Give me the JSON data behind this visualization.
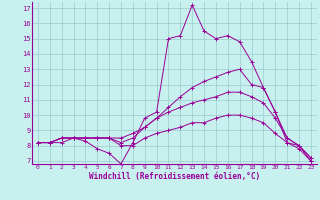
{
  "xlabel": "Windchill (Refroidissement éolien,°C)",
  "background_color": "#c8f0ee",
  "line_color": "#990099",
  "grid_color": "#99cccc",
  "xlim": [
    -0.5,
    23.5
  ],
  "ylim": [
    6.8,
    17.4
  ],
  "xticks": [
    0,
    1,
    2,
    3,
    4,
    5,
    6,
    7,
    8,
    9,
    10,
    11,
    12,
    13,
    14,
    15,
    16,
    17,
    18,
    19,
    20,
    21,
    22,
    23
  ],
  "yticks": [
    7,
    8,
    9,
    10,
    11,
    12,
    13,
    14,
    15,
    16,
    17
  ],
  "series": [
    [
      8.2,
      8.2,
      8.2,
      8.5,
      8.3,
      7.8,
      7.5,
      6.8,
      8.2,
      9.8,
      10.2,
      15.0,
      15.2,
      17.2,
      15.5,
      15.0,
      15.2,
      14.8,
      13.5,
      11.8,
      10.2,
      8.2,
      8.0,
      7.0
    ],
    [
      8.2,
      8.2,
      8.5,
      8.5,
      8.5,
      8.5,
      8.5,
      8.2,
      8.5,
      9.2,
      9.8,
      10.5,
      11.2,
      11.8,
      12.2,
      12.5,
      12.8,
      13.0,
      12.0,
      11.8,
      10.2,
      8.5,
      8.0,
      7.2
    ],
    [
      8.2,
      8.2,
      8.5,
      8.5,
      8.5,
      8.5,
      8.5,
      8.5,
      8.8,
      9.2,
      9.8,
      10.2,
      10.5,
      10.8,
      11.0,
      11.2,
      11.5,
      11.5,
      11.2,
      10.8,
      9.8,
      8.5,
      8.0,
      7.2
    ],
    [
      8.2,
      8.2,
      8.5,
      8.5,
      8.5,
      8.5,
      8.5,
      8.0,
      8.0,
      8.5,
      8.8,
      9.0,
      9.2,
      9.5,
      9.5,
      9.8,
      10.0,
      10.0,
      9.8,
      9.5,
      8.8,
      8.2,
      7.8,
      7.0
    ]
  ]
}
